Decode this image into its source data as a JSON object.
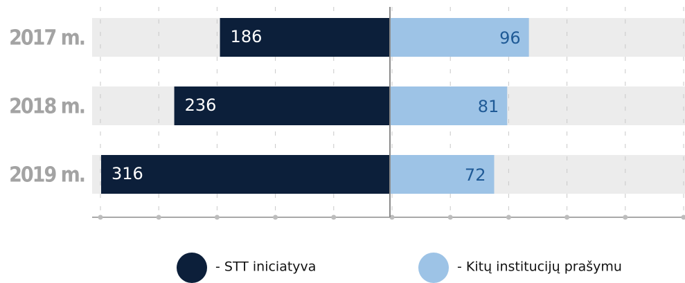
{
  "chart_data": {
    "type": "bar",
    "categories": [
      "2017 m.",
      "2018 m.",
      "2019 m."
    ],
    "series": [
      {
        "name": "- STT iniciatyva",
        "color": "#0c1f3a",
        "values": [
          186,
          236,
          316
        ]
      },
      {
        "name": "- Kitų institucijų prašymu",
        "color": "#9dc3e6",
        "values": [
          96,
          81,
          72
        ]
      }
    ]
  }
}
